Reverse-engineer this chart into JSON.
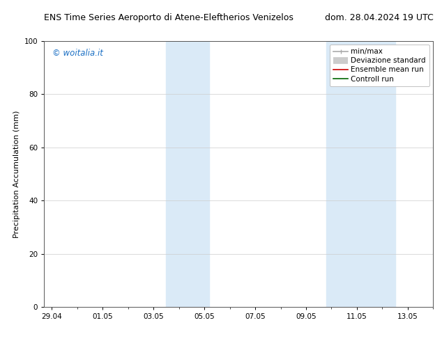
{
  "title_left": "ENS Time Series Aeroporto di Atene-Eleftherios Venizelos",
  "title_right": "dom. 28.04.2024 19 UTC",
  "ylabel": "Precipitation Accumulation (mm)",
  "ylim": [
    0,
    100
  ],
  "yticks": [
    0,
    20,
    40,
    60,
    80,
    100
  ],
  "xtick_labels": [
    "29.04",
    "01.05",
    "03.05",
    "05.05",
    "07.05",
    "09.05",
    "11.05",
    "13.05"
  ],
  "xtick_positions": [
    0,
    2,
    4,
    6,
    8,
    10,
    12,
    14
  ],
  "xmin": -0.3,
  "xmax": 15.0,
  "shaded_regions": [
    {
      "xmin": 4.5,
      "xmax": 6.2
    },
    {
      "xmin": 10.8,
      "xmax": 13.5
    }
  ],
  "shaded_color": "#daeaf7",
  "background_color": "#ffffff",
  "watermark_text": "© woitalia.it",
  "watermark_color": "#1a6fc4",
  "legend_entries": [
    {
      "label": "min/max",
      "color": "#aaaaaa",
      "lw": 1.2,
      "style": "line_with_cap"
    },
    {
      "label": "Deviazione standard",
      "color": "#cccccc",
      "lw": 7,
      "style": "thick"
    },
    {
      "label": "Ensemble mean run",
      "color": "#cc0000",
      "lw": 1.2,
      "style": "line"
    },
    {
      "label": "Controll run",
      "color": "#006600",
      "lw": 1.2,
      "style": "line"
    }
  ],
  "grid_color": "#cccccc",
  "grid_lw": 0.5,
  "tick_fontsize": 7.5,
  "ylabel_fontsize": 8,
  "title_fontsize": 9,
  "watermark_fontsize": 8.5,
  "legend_fontsize": 7.5
}
